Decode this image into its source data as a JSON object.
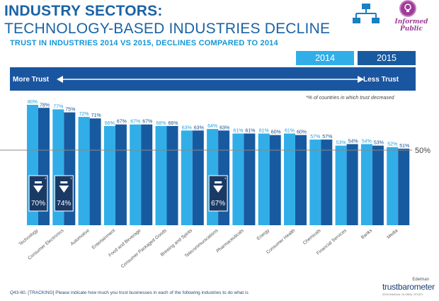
{
  "header": {
    "title": "INDUSTRY SECTORS:",
    "subtitle": "TECHNOLOGY-BASED INDUSTRIES DECLINE",
    "tagline": "TRUST IN INDUSTRIES 2014 VS 2015, DECLINES COMPARED TO 2014",
    "badge": "Informed Public"
  },
  "legend": {
    "y2014": "2014",
    "y2015": "2015",
    "color_2014": "#31aee8",
    "color_2015": "#185aa0"
  },
  "trust_scale": {
    "left": "More Trust",
    "right": "Less Trust"
  },
  "footnote": "*% of countries in which trust decreased",
  "chart_data": {
    "type": "bar",
    "categories": [
      "Technology",
      "Consumer Electronics",
      "Automotive",
      "Entertainment",
      "Food and Beverage",
      "Consumer Packaged Goods",
      "Brewing and Spirits",
      "Telecommunications",
      "Pharmaceuticals",
      "Energy",
      "Consumer Health",
      "Chemicals",
      "Financial Services",
      "Banks",
      "Media"
    ],
    "series": [
      {
        "name": "2014",
        "values": [
          80,
          77,
          72,
          66,
          67,
          66,
          63,
          64,
          61,
          61,
          61,
          57,
          53,
          54,
          52
        ]
      },
      {
        "name": "2015",
        "values": [
          78,
          75,
          71,
          67,
          67,
          66,
          63,
          63,
          61,
          60,
          60,
          57,
          54,
          53,
          51
        ]
      }
    ],
    "reference_line": {
      "value": 50,
      "label": "50%"
    },
    "decline_callouts": [
      {
        "category": "Technology",
        "value": "70%"
      },
      {
        "category": "Consumer Electronics",
        "value": "74%"
      },
      {
        "category": "Telecommunications",
        "value": "67%"
      }
    ],
    "grid": false
  },
  "source": "Q43-60. [TRACKING] Please indicate how much you trust businesses in each of the following industries to do what is",
  "brand": {
    "company": "Edelman",
    "product": "trustbarometer",
    "edition": "2015 ANNUAL GLOBAL STUDY"
  }
}
